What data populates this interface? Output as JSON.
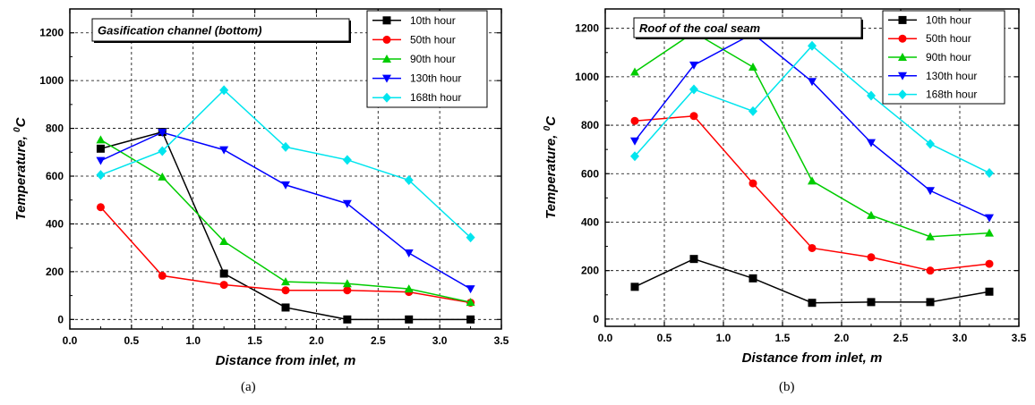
{
  "chart_data": [
    {
      "type": "line",
      "title": "Gasification channel (bottom)",
      "xlabel": "Distance from inlet, m",
      "ylabel": "Temperature, ",
      "ylabel_sup": "0",
      "ylabel_unit": "C",
      "xlim": [
        0.0,
        3.5
      ],
      "ylim": [
        -40,
        1300
      ],
      "xticks": [
        "0.0",
        "0.5",
        "1.0",
        "1.5",
        "2.0",
        "2.5",
        "3.0",
        "3.5"
      ],
      "yticks": [
        "0",
        "200",
        "400",
        "600",
        "800",
        "1000",
        "1200"
      ],
      "grid": true,
      "legend_position": "top-right",
      "caption": "(a)",
      "x": [
        0.25,
        0.75,
        1.25,
        1.75,
        2.25,
        2.75,
        3.25
      ],
      "series": [
        {
          "name": "10th hour",
          "color": "#000000",
          "marker": "square",
          "values": [
            715,
            785,
            192,
            50,
            0,
            0,
            0
          ]
        },
        {
          "name": "50th hour",
          "color": "#ff0000",
          "marker": "circle",
          "values": [
            470,
            183,
            145,
            122,
            122,
            115,
            70
          ]
        },
        {
          "name": "90th hour",
          "color": "#00cc00",
          "marker": "triangle-up",
          "values": [
            752,
            597,
            327,
            158,
            150,
            128,
            72
          ]
        },
        {
          "name": "130th hour",
          "color": "#0000ff",
          "marker": "triangle-down",
          "values": [
            665,
            783,
            710,
            563,
            485,
            278,
            128
          ]
        },
        {
          "name": "168th hour",
          "color": "#00e5ee",
          "marker": "diamond",
          "values": [
            605,
            705,
            960,
            722,
            668,
            583,
            343
          ]
        }
      ]
    },
    {
      "type": "line",
      "title": "Roof of the coal seam",
      "xlabel": "Distance from inlet, m",
      "ylabel": "Temperature, ",
      "ylabel_sup": "0",
      "ylabel_unit": "C",
      "xlim": [
        0.0,
        3.5
      ],
      "ylim": [
        -30,
        1280
      ],
      "xticks": [
        "0.0",
        "0.5",
        "1.0",
        "1.5",
        "2.0",
        "2.5",
        "3.0",
        "3.5"
      ],
      "yticks": [
        "0",
        "200",
        "400",
        "600",
        "800",
        "1000",
        "1200"
      ],
      "grid": true,
      "legend_position": "top-right",
      "caption": "(b)",
      "x": [
        0.25,
        0.75,
        1.25,
        1.75,
        2.25,
        2.75,
        3.25
      ],
      "series": [
        {
          "name": "10th hour",
          "color": "#000000",
          "marker": "square",
          "values": [
            133,
            248,
            168,
            67,
            70,
            70,
            113
          ]
        },
        {
          "name": "50th hour",
          "color": "#ff0000",
          "marker": "circle",
          "values": [
            818,
            838,
            560,
            293,
            255,
            200,
            228
          ]
        },
        {
          "name": "90th hour",
          "color": "#00cc00",
          "marker": "triangle-up",
          "values": [
            1020,
            1183,
            1040,
            570,
            428,
            340,
            355
          ]
        },
        {
          "name": "130th hour",
          "color": "#0000ff",
          "marker": "triangle-down",
          "values": [
            735,
            1048,
            1178,
            980,
            728,
            530,
            418
          ]
        },
        {
          "name": "168th hour",
          "color": "#00e5ee",
          "marker": "diamond",
          "values": [
            672,
            948,
            858,
            1128,
            922,
            723,
            603
          ]
        }
      ]
    }
  ]
}
